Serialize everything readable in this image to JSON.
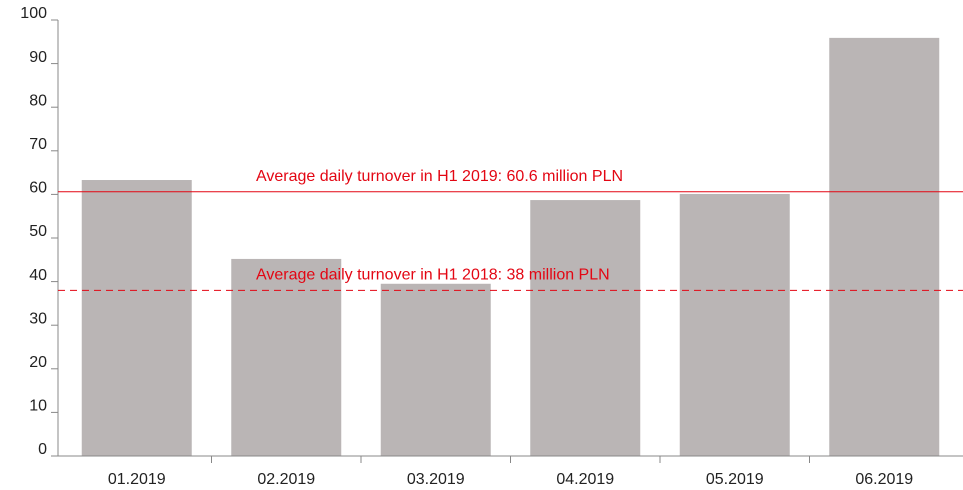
{
  "chart_data": {
    "type": "bar",
    "categories": [
      "01.2019",
      "02.2019",
      "03.2019",
      "04.2019",
      "05.2019",
      "06.2019"
    ],
    "values": [
      63.3,
      45.2,
      39.5,
      58.7,
      60.1,
      95.9
    ],
    "color": "#bab5b5",
    "ylim": [
      0,
      100
    ],
    "yticks": [
      0,
      10,
      20,
      30,
      40,
      50,
      60,
      70,
      80,
      90,
      100
    ],
    "grid": false,
    "reference_lines": [
      {
        "value": 60.6,
        "label": "Average daily turnover in H1 2019: 60.6 million PLN",
        "style": "solid",
        "color": "#e30613"
      },
      {
        "value": 38,
        "label": "Average daily turnover in H1 2018: 38 million PLN",
        "style": "dashed",
        "color": "#e30613"
      }
    ]
  }
}
